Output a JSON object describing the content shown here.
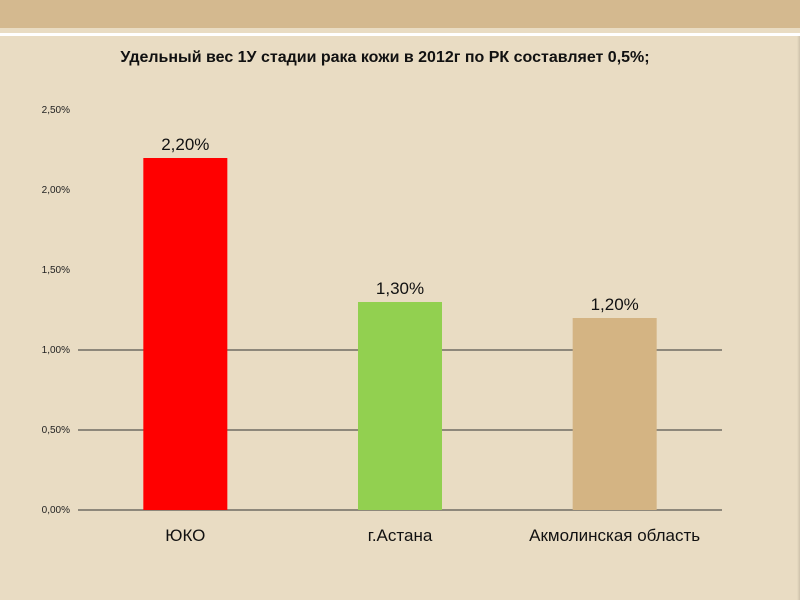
{
  "slide": {
    "title": "Удельный вес 1У стадии рака кожи в 2012г по РК составляет 0,5%;"
  },
  "chart_data": {
    "type": "bar",
    "categories": [
      "ЮКО",
      "г.Астана",
      "Акмолинская область"
    ],
    "values": [
      2.2,
      1.3,
      1.2
    ],
    "data_labels": [
      "2,20%",
      "1,30%",
      "1,20%"
    ],
    "colors": [
      "#ff0000",
      "#92d050",
      "#d4b483"
    ],
    "ylim": [
      0,
      2.5
    ],
    "yticks": [
      0,
      0.5,
      1.0,
      1.5,
      2.0,
      2.5
    ],
    "ytick_labels": [
      "0,00%",
      "0,50%",
      "1,00%",
      "1,50%",
      "2,00%",
      "2,50%"
    ],
    "grid": true,
    "legend": "none"
  }
}
